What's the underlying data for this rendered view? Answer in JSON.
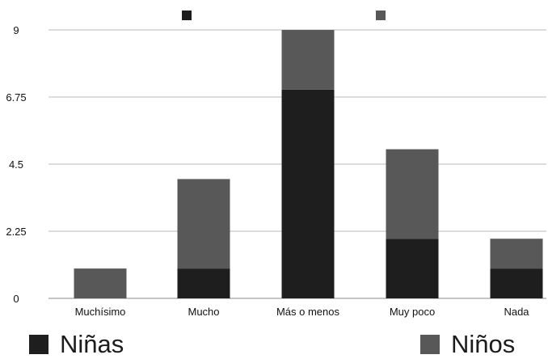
{
  "chart_data": {
    "type": "bar",
    "stacked": true,
    "categories": [
      "Muchísimo",
      "Mucho",
      "Más o menos",
      "Muy poco",
      "Nada"
    ],
    "series": [
      {
        "name": "Niñas",
        "color": "#1e1e1e",
        "values": [
          0,
          1,
          7,
          2,
          1
        ]
      },
      {
        "name": "Niños",
        "color": "#585858",
        "values": [
          1,
          3,
          2,
          3,
          1
        ]
      }
    ],
    "yticks": [
      "0",
      "2.25",
      "4.5",
      "6.75",
      "9"
    ],
    "ylim": [
      0,
      9
    ],
    "grid": true,
    "legend_position": "bottom"
  }
}
